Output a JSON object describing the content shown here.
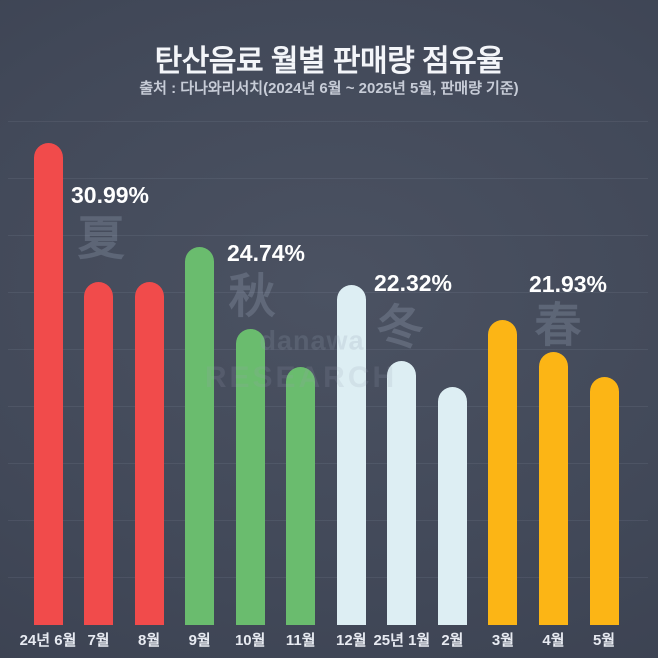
{
  "title": "탄산음료 월별 판매량 점유율",
  "subtitle": "출처 : 다나와리서치(2024년 6월 ~ 2025년 5월, 판매량 기준)",
  "watermark": {
    "brand": "danawa",
    "brand_sub": "RESEARCH"
  },
  "colors": {
    "background_center": "#4b5262",
    "background_edge": "#363c4b",
    "title_text": "#f3f5f9",
    "subtitle_text": "#c7ccd7",
    "value_label_text": "#ffffff",
    "tick_label_text": "#e7eaf1",
    "summer_bar": "#f14b4b",
    "autumn_bar": "#6abc6e",
    "winter_bar": "#ddeef3",
    "spring_bar": "#fcb515"
  },
  "chart_data": {
    "type": "bar",
    "title": "탄산음료 월별 판매량 점유율",
    "subtitle": "출처 : 다나와리서치(2024년 6월 ~ 2025년 5월, 판매량 기준)",
    "categories": [
      "24년 6월",
      "7월",
      "8월",
      "9월",
      "10월",
      "11월",
      "12월",
      "25년 1월",
      "2월",
      "3월",
      "4월",
      "5월"
    ],
    "values": [
      12.79,
      9.1,
      9.1,
      10.03,
      7.86,
      6.85,
      9.02,
      6.99,
      6.31,
      8.09,
      7.25,
      6.59
    ],
    "values_note": "monthly shares (%) estimated from bar heights; only seasonal totals are labeled on the chart",
    "groups": [
      {
        "season": "여름",
        "glyph": "夏",
        "label": "30.99%",
        "value": 30.99,
        "months": [
          "24년 6월",
          "7월",
          "8월"
        ],
        "color": "#f14b4b"
      },
      {
        "season": "가을",
        "glyph": "秋",
        "label": "24.74%",
        "value": 24.74,
        "months": [
          "9월",
          "10월",
          "11월"
        ],
        "color": "#6abc6e"
      },
      {
        "season": "겨울",
        "glyph": "冬",
        "label": "22.32%",
        "value": 22.32,
        "months": [
          "12월",
          "25년 1월",
          "2월"
        ],
        "color": "#ddeef3"
      },
      {
        "season": "봄",
        "glyph": "春",
        "label": "21.93%",
        "value": 21.93,
        "months": [
          "3월",
          "4월",
          "5월"
        ],
        "color": "#fcb515"
      }
    ],
    "xlabel": "",
    "ylabel": "",
    "ylim": [
      0,
      13.5
    ],
    "grid": true,
    "legend": false
  }
}
